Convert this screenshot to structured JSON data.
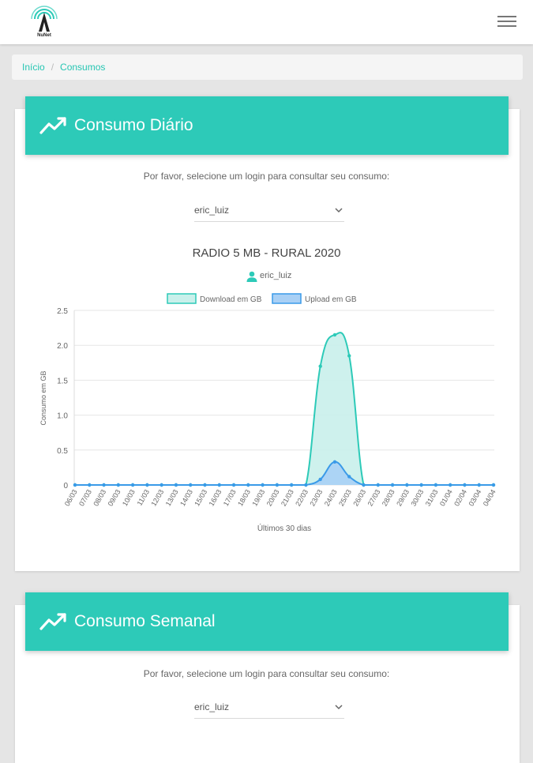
{
  "header": {
    "logo_text": "NuNet",
    "menu_icon": "hamburger-menu-icon"
  },
  "breadcrumb": {
    "home": "Início",
    "current": "Consumos"
  },
  "daily": {
    "title": "Consumo Diário",
    "icon": "trend-line-icon",
    "prompt": "Por favor, selecione um login para consultar seu consumo:",
    "selected_login": "eric_luiz",
    "plan": "RADIO 5 MB - RURAL 2020",
    "user": "eric_luiz"
  },
  "weekly": {
    "title": "Consumo Semanal",
    "icon": "trend-line-icon",
    "prompt": "Por favor, selecione um login para consultar seu consumo:",
    "selected_login": "eric_luiz"
  },
  "colors": {
    "accent": "#2dcab8",
    "download_line": "#2dcab8",
    "download_fill": "#c9f0eb",
    "upload_line": "#3a9ae8",
    "upload_fill": "#a9d0f5"
  },
  "chart_data": {
    "type": "area",
    "title": "RADIO 5 MB - RURAL 2020",
    "xlabel": "Últimos 30 dias",
    "ylabel": "Consumo em GB",
    "ylim": [
      0,
      2.5
    ],
    "yticks": [
      0,
      0.5,
      1.0,
      1.5,
      2.0,
      2.5
    ],
    "ytick_labels": [
      "0",
      "0.5",
      "1.0",
      "1.5",
      "2.0",
      "2.5"
    ],
    "grid": true,
    "legend_position": "top",
    "categories": [
      "06/03",
      "07/03",
      "08/03",
      "09/03",
      "10/03",
      "11/03",
      "12/03",
      "13/03",
      "14/03",
      "15/03",
      "16/03",
      "17/03",
      "18/03",
      "19/03",
      "20/03",
      "21/03",
      "22/03",
      "23/03",
      "24/03",
      "25/03",
      "26/03",
      "27/03",
      "28/03",
      "29/03",
      "30/03",
      "31/03",
      "01/04",
      "02/04",
      "03/04",
      "04/04"
    ],
    "series": [
      {
        "name": "Download em GB",
        "values": [
          0,
          0,
          0,
          0,
          0,
          0,
          0,
          0,
          0,
          0,
          0,
          0,
          0,
          0,
          0,
          0,
          0,
          1.7,
          2.15,
          1.85,
          0,
          0,
          0,
          0,
          0,
          0,
          0,
          0,
          0,
          0
        ]
      },
      {
        "name": "Upload em GB",
        "values": [
          0,
          0,
          0,
          0,
          0,
          0,
          0,
          0,
          0,
          0,
          0,
          0,
          0,
          0,
          0,
          0,
          0,
          0.08,
          0.33,
          0.12,
          0,
          0,
          0,
          0,
          0,
          0,
          0,
          0,
          0,
          0
        ]
      }
    ]
  }
}
